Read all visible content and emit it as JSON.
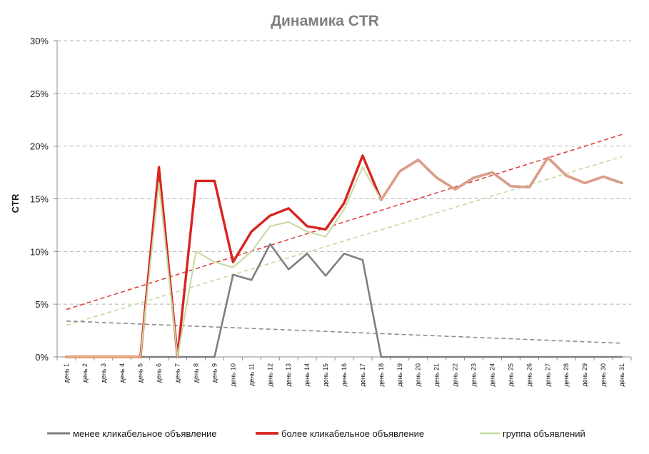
{
  "chart_data": {
    "type": "line",
    "title": "Динамика CTR",
    "ylabel": "CTR",
    "xlabel": "",
    "ylim": [
      0,
      0.3
    ],
    "ytick_values": [
      0,
      0.05,
      0.1,
      0.15,
      0.2,
      0.25,
      0.3
    ],
    "ytick_labels": [
      "0%",
      "5%",
      "10%",
      "15%",
      "20%",
      "25%",
      "30%"
    ],
    "grid": "horizontal-dashed",
    "legend_position": "bottom",
    "categories": [
      "день 1",
      "день 2",
      "день 3",
      "день 4",
      "день 5",
      "день 6",
      "день 7",
      "день 8",
      "день 9",
      "день 10",
      "день 11",
      "день 12",
      "день 13",
      "день 14",
      "день 15",
      "день 16",
      "день 17",
      "день 18",
      "день 19",
      "день 20",
      "день 21",
      "день 22",
      "день 23",
      "день 24",
      "день 25",
      "день 26",
      "день 27",
      "день 28",
      "день 29",
      "день 30",
      "день 31"
    ],
    "series": [
      {
        "name": "менее кликабельное объявление",
        "color": "#7f7f7f",
        "values": [
          0,
          0,
          0,
          0,
          0,
          0,
          0,
          0,
          0,
          0.078,
          0.073,
          0.107,
          0.083,
          0.098,
          0.077,
          0.098,
          0.092,
          0,
          0,
          0,
          0,
          0,
          0,
          0,
          0,
          0,
          0,
          0,
          0,
          0,
          0
        ]
      },
      {
        "name": "более кликабельное объявление",
        "color": "#d9231f",
        "values": [
          0,
          0,
          0,
          0,
          0,
          0.18,
          0,
          0.167,
          0.167,
          0.09,
          0.119,
          0.134,
          0.141,
          0.124,
          0.121,
          0.146,
          0.191,
          0.149,
          0.176,
          0.187,
          0.17,
          0.159,
          0.17,
          0.175,
          0.162,
          0.161,
          0.189,
          0.172,
          0.165,
          0.171,
          0.165
        ]
      },
      {
        "name": "группа объявлений",
        "color": "#c6d9a0",
        "values": [
          0,
          0,
          0,
          0,
          0,
          0.165,
          0,
          0.1,
          0.09,
          0.085,
          0.1,
          0.124,
          0.128,
          0.119,
          0.114,
          0.14,
          0.18,
          0.149,
          0.176,
          0.187,
          0.17,
          0.159,
          0.17,
          0.175,
          0.162,
          0.161,
          0.189,
          0.172,
          0.165,
          0.171,
          0.165
        ]
      }
    ],
    "trendlines": [
      {
        "series": "более кликабельное объявление",
        "color": "#e04040",
        "start": 0.045,
        "end": 0.211
      },
      {
        "series": "группа объявлений",
        "color": "#c6d9a0",
        "start": 0.03,
        "end": 0.19
      },
      {
        "series": "менее кликабельное объявление",
        "color": "#8c8c8c",
        "start": 0.034,
        "end": 0.013
      }
    ],
    "colors": {
      "title": "#7f7f7f",
      "grid": "#b3b3b3",
      "axis": "#8c8c8c",
      "text": "#1a1a1a",
      "overlap": "#d8a08a"
    }
  }
}
